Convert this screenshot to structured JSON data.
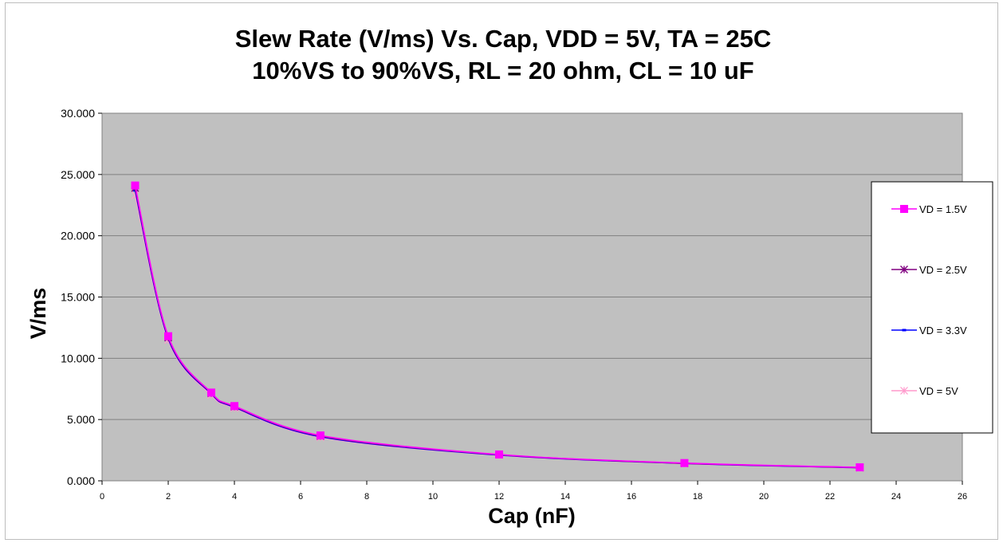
{
  "chart_data": {
    "type": "line",
    "title_line1": "Slew Rate (V/ms) Vs. Cap, VDD = 5V, TA = 25C",
    "title_line2": "10%VS to 90%VS, RL = 20 ohm, CL = 10 uF",
    "xlabel": "Cap (nF)",
    "ylabel": "V/ms",
    "xlim": [
      0,
      26
    ],
    "ylim": [
      0,
      30
    ],
    "x_ticks": [
      "0",
      "2",
      "4",
      "6",
      "8",
      "10",
      "12",
      "14",
      "16",
      "18",
      "20",
      "22",
      "24",
      "26"
    ],
    "y_ticks": [
      "0.000",
      "5.000",
      "10.000",
      "15.000",
      "20.000",
      "25.000",
      "30.000"
    ],
    "grid": "horizontal",
    "legend_position": "right",
    "plot_background": "#c0c0c0",
    "x": [
      1,
      2,
      3.3,
      4,
      6.6,
      12,
      17.6,
      22.9
    ],
    "series": [
      {
        "name": "VD = 1.5V",
        "color": "#ff00ff",
        "marker": "square",
        "values": [
          24.1,
          11.8,
          7.2,
          6.1,
          3.7,
          2.15,
          1.45,
          1.1
        ]
      },
      {
        "name": "VD = 2.5V",
        "color": "#800080",
        "marker": "asterisk",
        "values": [
          23.9,
          11.7,
          7.15,
          6.05,
          3.65,
          2.13,
          1.43,
          1.08
        ]
      },
      {
        "name": "VD = 3.3V",
        "color": "#0000ff",
        "marker": "dash",
        "values": [
          23.7,
          11.6,
          7.1,
          6.0,
          3.6,
          2.1,
          1.42,
          1.07
        ]
      },
      {
        "name": "VD = 5V",
        "color": "#ff99cc",
        "marker": "star",
        "values": [
          23.3,
          11.5,
          7.0,
          5.95,
          3.55,
          2.08,
          1.4,
          1.05
        ]
      }
    ]
  }
}
